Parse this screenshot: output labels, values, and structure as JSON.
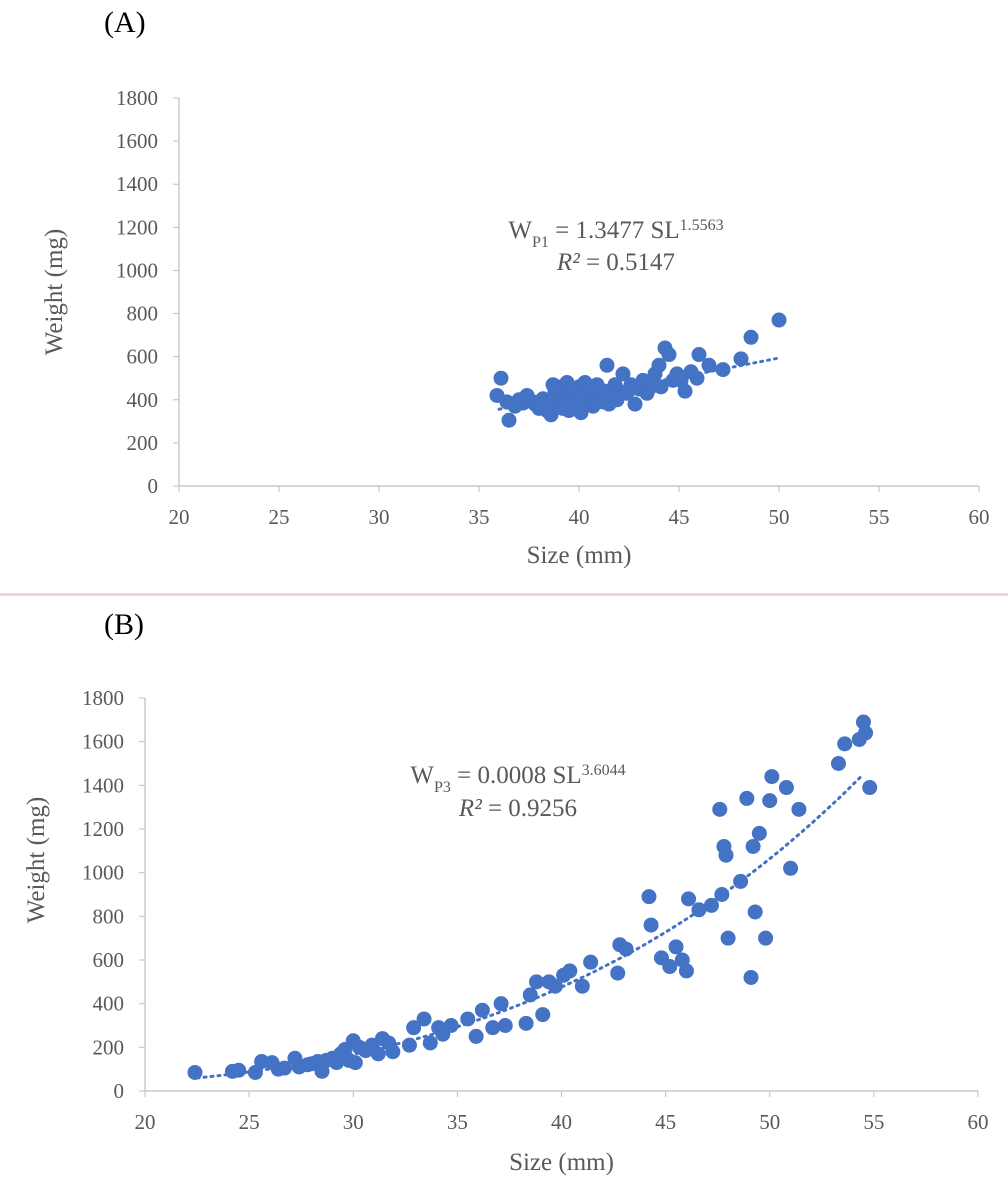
{
  "colors": {
    "marker": "#4472c4",
    "axis": "#bfbfbf",
    "text": "#595959"
  },
  "chart_data": [
    {
      "type": "scatter",
      "panel_label": "(A)",
      "xlabel": "Size (mm)",
      "ylabel": "Weight (mg)",
      "xlim": [
        20,
        60
      ],
      "ylim": [
        0,
        1800
      ],
      "xticks": [
        "20",
        "25",
        "30",
        "35",
        "40",
        "45",
        "50",
        "55",
        "60"
      ],
      "yticks": [
        "0",
        "200",
        "400",
        "600",
        "800",
        "1000",
        "1200",
        "1400",
        "1600",
        "1800"
      ],
      "trendline": {
        "type": "power",
        "a": 1.3477,
        "b": 1.5563,
        "x_range": [
          36,
          50
        ],
        "style": "dotted"
      },
      "annotation": {
        "lhs": "W",
        "sub": "P1",
        "mid": " = 1.3477 SL",
        "sup": "1.5563",
        "r2": "R² = 0.5147"
      },
      "grid": false,
      "legend": "none",
      "points": [
        [
          35.9,
          420
        ],
        [
          36.1,
          500
        ],
        [
          36.4,
          390
        ],
        [
          36.5,
          305
        ],
        [
          36.8,
          370
        ],
        [
          37.0,
          400
        ],
        [
          37.2,
          385
        ],
        [
          37.4,
          420
        ],
        [
          37.6,
          395
        ],
        [
          37.8,
          380
        ],
        [
          38.0,
          360
        ],
        [
          38.2,
          405
        ],
        [
          38.4,
          350
        ],
        [
          38.6,
          330
        ],
        [
          38.7,
          470
        ],
        [
          38.8,
          440
        ],
        [
          38.9,
          390
        ],
        [
          39.0,
          420
        ],
        [
          39.1,
          460
        ],
        [
          39.2,
          360
        ],
        [
          39.3,
          410
        ],
        [
          39.4,
          480
        ],
        [
          39.5,
          350
        ],
        [
          39.6,
          440
        ],
        [
          39.7,
          400
        ],
        [
          39.8,
          380
        ],
        [
          39.9,
          430
        ],
        [
          40.0,
          460
        ],
        [
          40.1,
          340
        ],
        [
          40.2,
          420
        ],
        [
          40.3,
          480
        ],
        [
          40.4,
          380
        ],
        [
          40.5,
          400
        ],
        [
          40.6,
          450
        ],
        [
          40.7,
          370
        ],
        [
          40.8,
          420
        ],
        [
          40.9,
          470
        ],
        [
          41.0,
          400
        ],
        [
          41.2,
          390
        ],
        [
          41.3,
          440
        ],
        [
          41.4,
          560
        ],
        [
          41.5,
          380
        ],
        [
          41.6,
          420
        ],
        [
          41.8,
          470
        ],
        [
          41.9,
          400
        ],
        [
          42.0,
          440
        ],
        [
          42.2,
          520
        ],
        [
          42.4,
          430
        ],
        [
          42.6,
          470
        ],
        [
          42.8,
          380
        ],
        [
          43.0,
          450
        ],
        [
          43.2,
          490
        ],
        [
          43.4,
          430
        ],
        [
          43.6,
          460
        ],
        [
          43.8,
          520
        ],
        [
          44.0,
          560
        ],
        [
          44.1,
          460
        ],
        [
          44.3,
          640
        ],
        [
          44.5,
          610
        ],
        [
          44.7,
          490
        ],
        [
          44.9,
          520
        ],
        [
          45.1,
          490
        ],
        [
          45.3,
          440
        ],
        [
          45.6,
          530
        ],
        [
          45.9,
          500
        ],
        [
          46.0,
          610
        ],
        [
          46.5,
          560
        ],
        [
          47.2,
          540
        ],
        [
          48.1,
          590
        ],
        [
          48.6,
          690
        ],
        [
          50.0,
          770
        ]
      ]
    },
    {
      "type": "scatter",
      "panel_label": "(B)",
      "xlabel": "Size (mm)",
      "ylabel": "Weight (mg)",
      "xlim": [
        20,
        60
      ],
      "ylim": [
        0,
        1800
      ],
      "xticks": [
        "20",
        "25",
        "30",
        "35",
        "40",
        "45",
        "50",
        "55",
        "60"
      ],
      "yticks": [
        "0",
        "200",
        "400",
        "600",
        "800",
        "1000",
        "1200",
        "1400",
        "1600",
        "1800"
      ],
      "trendline": {
        "type": "power",
        "a": 0.0008,
        "b": 3.6044,
        "x_range": [
          22.5,
          54.5
        ],
        "style": "dotted"
      },
      "annotation": {
        "lhs": "W",
        "sub": "P3",
        "mid": " = 0.0008 SL",
        "sup": "3.6044",
        "r2": "R² = 0.9256"
      },
      "grid": false,
      "legend": "none",
      "points": [
        [
          22.4,
          85
        ],
        [
          24.2,
          90
        ],
        [
          24.5,
          95
        ],
        [
          25.3,
          85
        ],
        [
          25.6,
          135
        ],
        [
          26.1,
          130
        ],
        [
          26.4,
          100
        ],
        [
          26.7,
          105
        ],
        [
          27.2,
          150
        ],
        [
          27.4,
          110
        ],
        [
          27.8,
          120
        ],
        [
          28.0,
          125
        ],
        [
          28.3,
          135
        ],
        [
          28.5,
          90
        ],
        [
          28.7,
          140
        ],
        [
          29.0,
          150
        ],
        [
          29.2,
          130
        ],
        [
          29.4,
          170
        ],
        [
          29.6,
          190
        ],
        [
          29.8,
          140
        ],
        [
          30.0,
          230
        ],
        [
          30.1,
          130
        ],
        [
          30.3,
          200
        ],
        [
          30.6,
          185
        ],
        [
          30.9,
          210
        ],
        [
          31.2,
          170
        ],
        [
          31.4,
          240
        ],
        [
          31.7,
          220
        ],
        [
          31.9,
          180
        ],
        [
          32.7,
          210
        ],
        [
          32.9,
          290
        ],
        [
          33.4,
          330
        ],
        [
          33.7,
          220
        ],
        [
          34.1,
          290
        ],
        [
          34.3,
          260
        ],
        [
          34.7,
          300
        ],
        [
          35.5,
          330
        ],
        [
          35.9,
          250
        ],
        [
          36.2,
          370
        ],
        [
          36.7,
          290
        ],
        [
          37.1,
          400
        ],
        [
          37.3,
          300
        ],
        [
          38.3,
          310
        ],
        [
          38.5,
          440
        ],
        [
          38.8,
          500
        ],
        [
          39.1,
          350
        ],
        [
          39.4,
          500
        ],
        [
          39.7,
          480
        ],
        [
          40.1,
          530
        ],
        [
          40.4,
          550
        ],
        [
          41.0,
          480
        ],
        [
          41.4,
          590
        ],
        [
          42.7,
          540
        ],
        [
          42.8,
          670
        ],
        [
          43.1,
          650
        ],
        [
          44.2,
          890
        ],
        [
          44.3,
          760
        ],
        [
          44.8,
          610
        ],
        [
          45.2,
          570
        ],
        [
          45.5,
          660
        ],
        [
          45.8,
          600
        ],
        [
          46.0,
          550
        ],
        [
          46.1,
          880
        ],
        [
          46.6,
          830
        ],
        [
          47.2,
          850
        ],
        [
          47.6,
          1290
        ],
        [
          47.7,
          900
        ],
        [
          47.8,
          1120
        ],
        [
          47.9,
          1080
        ],
        [
          48.0,
          700
        ],
        [
          48.6,
          960
        ],
        [
          48.9,
          1340
        ],
        [
          49.1,
          520
        ],
        [
          49.2,
          1120
        ],
        [
          49.3,
          820
        ],
        [
          49.5,
          1180
        ],
        [
          49.8,
          700
        ],
        [
          50.0,
          1330
        ],
        [
          50.1,
          1440
        ],
        [
          50.8,
          1390
        ],
        [
          51.0,
          1020
        ],
        [
          51.4,
          1290
        ],
        [
          53.3,
          1500
        ],
        [
          53.6,
          1590
        ],
        [
          54.3,
          1610
        ],
        [
          54.5,
          1690
        ],
        [
          54.6,
          1640
        ],
        [
          54.8,
          1390
        ]
      ]
    }
  ]
}
